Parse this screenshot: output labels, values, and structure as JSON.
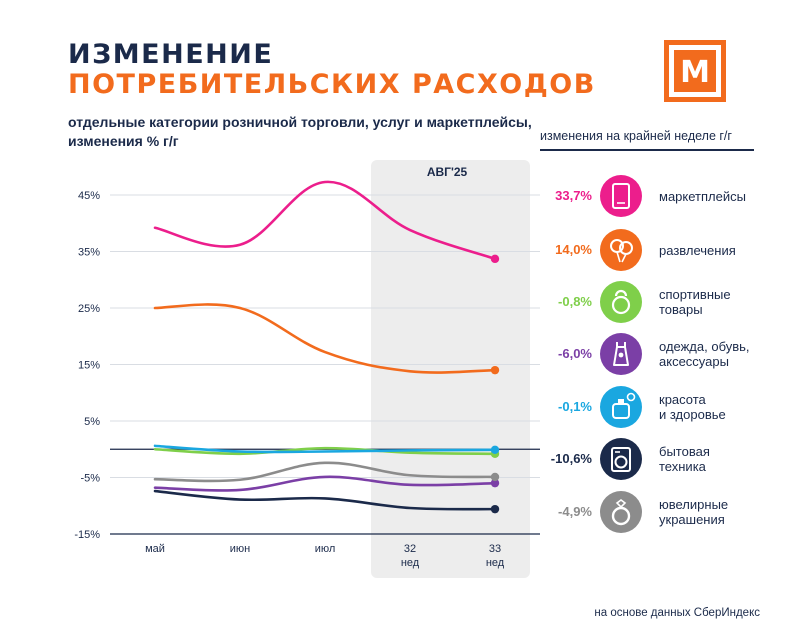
{
  "header": {
    "title_line1": "ИЗМЕНЕНИЕ",
    "title_line2": "ПОТРЕБИТЕЛЬСКИХ РАСХОДОВ",
    "subtitle": "отдельные категории розничной торговли, услуг  и маркетплейсы, изменения % г/г",
    "logo_text": "М"
  },
  "legend_header": "изменения на крайней неделе г/г",
  "source_note": "на основе данных СберИндекс",
  "colors": {
    "brand_orange": "#f26b1d",
    "navy": "#1b2a4a",
    "highlight_band": "#ededed"
  },
  "chart_data": {
    "type": "line",
    "title": "ИЗМЕНЕНИЕ ПОТРЕБИТЕЛЬСКИХ РАСХОДОВ",
    "subtitle": "отдельные категории розничной торговли, услуг  и маркетплейсы, изменения % г/г",
    "x_labels": [
      {
        "line1": "май",
        "line2": ""
      },
      {
        "line1": "июн",
        "line2": ""
      },
      {
        "line1": "июл",
        "line2": ""
      },
      {
        "line1": "32",
        "line2": "нед"
      },
      {
        "line1": "33",
        "line2": "нед"
      }
    ],
    "y_ticks": [
      45,
      35,
      25,
      15,
      5,
      -5,
      -15
    ],
    "y_tick_labels": [
      "45%",
      "35%",
      "25%",
      "15%",
      "5%",
      "-5%",
      "-15%"
    ],
    "ylim": [
      -15,
      50
    ],
    "highlight": {
      "label": "АВГ'25",
      "from_index": 3,
      "to_index": 4
    },
    "grid": true,
    "series": [
      {
        "name": "маркетплейсы",
        "values": [
          39.2,
          36.2,
          47.3,
          38.8,
          33.7
        ],
        "color": "#ec1e8c",
        "last_label": "33,7%",
        "icon": "tablet-icon"
      },
      {
        "name": "развлечения",
        "values": [
          25.0,
          25.0,
          17.2,
          13.8,
          14.0
        ],
        "color": "#f26b1d",
        "last_label": "14,0%",
        "icon": "balloons-icon"
      },
      {
        "name": "спортивные\nтовары",
        "values": [
          0.0,
          -0.8,
          0.2,
          -0.6,
          -0.8
        ],
        "color": "#7fcf4a",
        "last_label": "-0,8%",
        "icon": "kettlebell-icon"
      },
      {
        "name": "одежда, обувь,\nаксессуары",
        "values": [
          -6.8,
          -7.2,
          -4.9,
          -6.3,
          -6.0
        ],
        "color": "#7b3fa6",
        "last_label": "-6,0%",
        "icon": "dress-icon"
      },
      {
        "name": "красота\nи здоровье",
        "values": [
          0.6,
          -0.4,
          -0.4,
          -0.2,
          -0.1
        ],
        "color": "#1aa7e0",
        "last_label": "-0,1%",
        "icon": "perfume-icon"
      },
      {
        "name": "бытовая\nтехника",
        "values": [
          -7.4,
          -8.9,
          -8.7,
          -10.4,
          -10.6
        ],
        "color": "#1b2a4a",
        "last_label": "-10,6%",
        "icon": "washing-machine-icon"
      },
      {
        "name": "ювелирные\nукрашения",
        "values": [
          -5.3,
          -5.4,
          -2.4,
          -4.6,
          -4.9
        ],
        "color": "#8c8c8c",
        "last_label": "-4,9%",
        "icon": "ring-icon"
      }
    ]
  }
}
